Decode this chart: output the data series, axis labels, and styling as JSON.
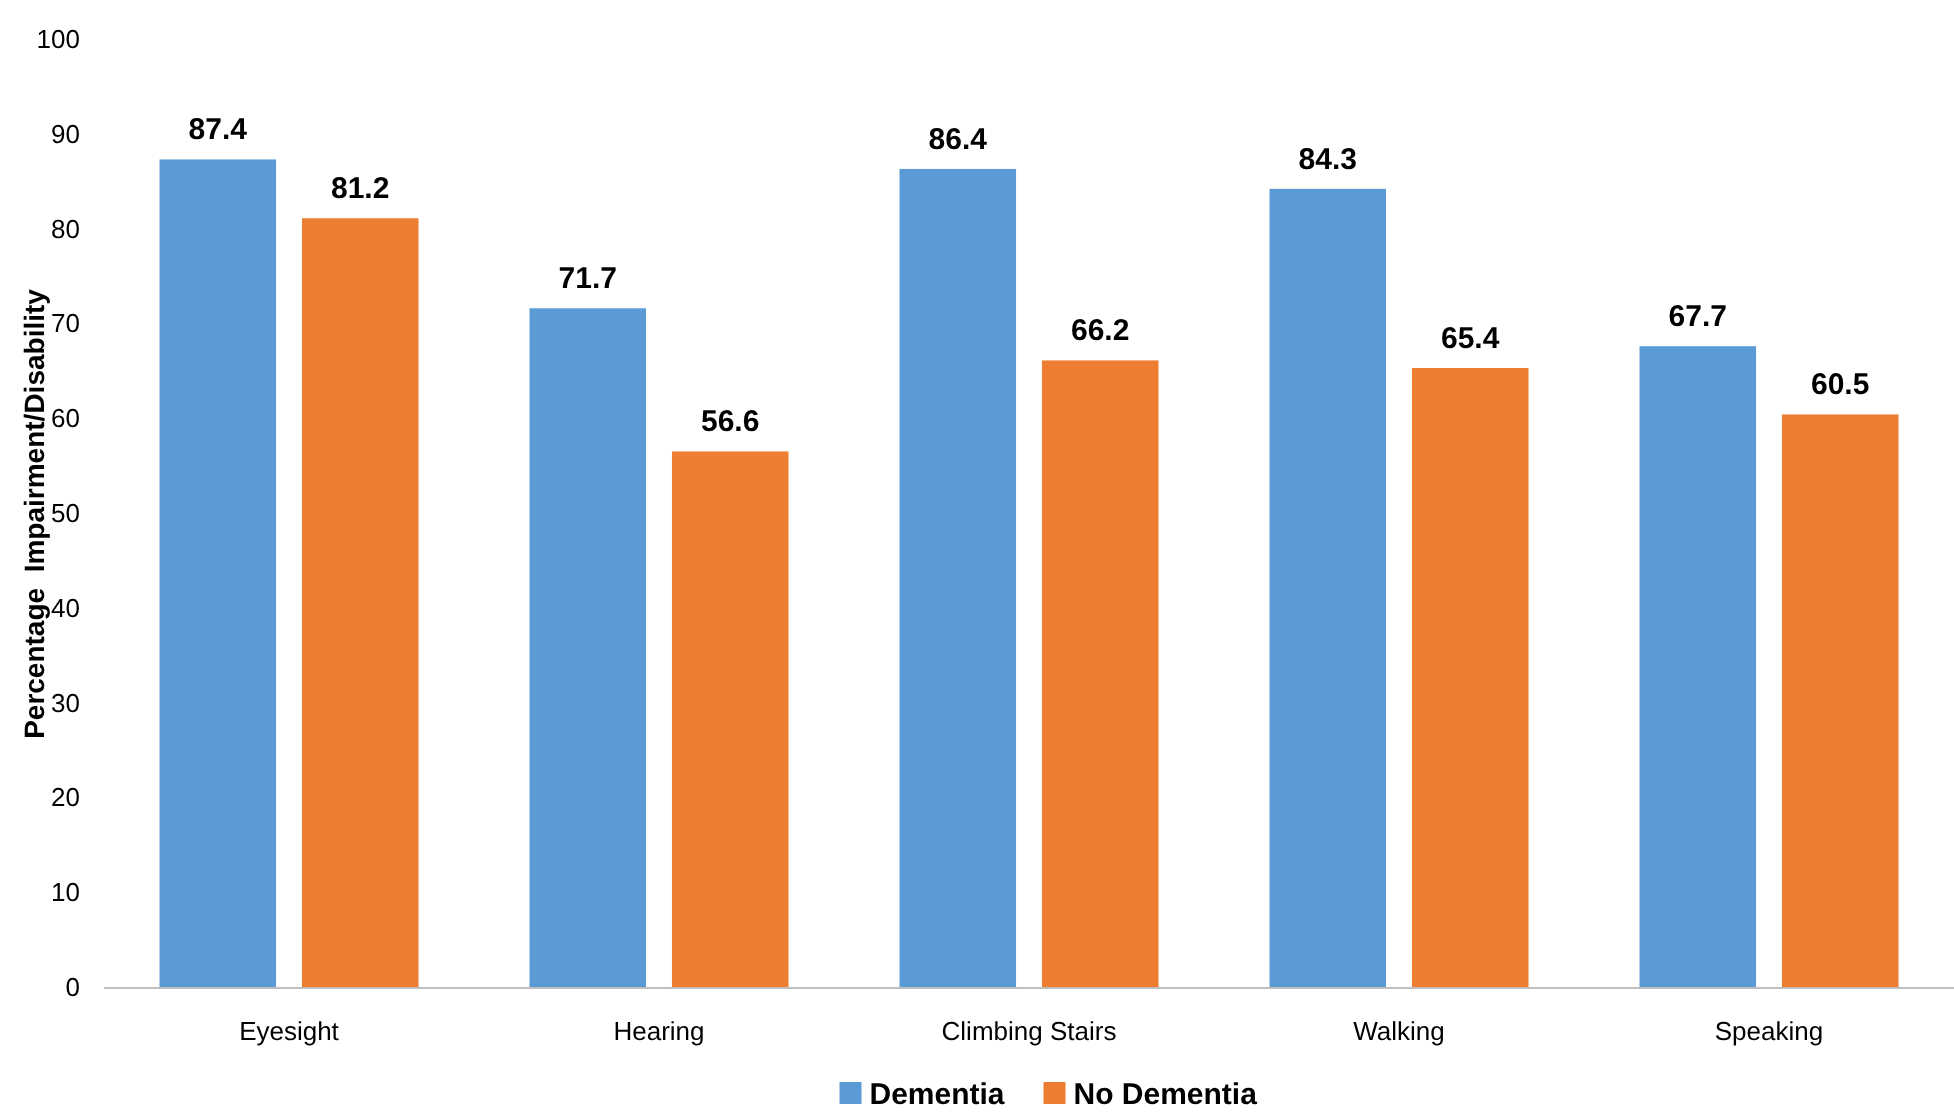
{
  "chart_data": {
    "type": "bar",
    "ylabel": "Percentage  Impairment/Disability",
    "categories": [
      "Eyesight",
      "Hearing",
      "Climbing Stairs",
      "Walking",
      "Speaking"
    ],
    "series": [
      {
        "name": "Dementia",
        "color": "#5b9bd5",
        "values": [
          87.4,
          71.7,
          86.4,
          84.3,
          67.7
        ]
      },
      {
        "name": "No Dementia",
        "color": "#ed7d31",
        "values": [
          81.2,
          56.6,
          66.2,
          65.4,
          60.5
        ]
      }
    ],
    "ylim": [
      0,
      100
    ],
    "yticks": [
      0,
      10,
      20,
      30,
      40,
      50,
      60,
      70,
      80,
      90,
      100
    ],
    "grid": false,
    "legend": "bottom",
    "data_labels": true
  }
}
